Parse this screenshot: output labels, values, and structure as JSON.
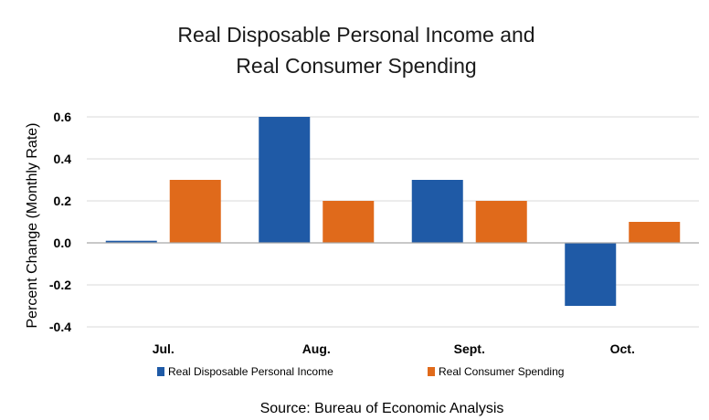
{
  "chart_data": {
    "type": "bar",
    "title": "Real Disposable Personal Income and Real Consumer Spending",
    "title_lines": [
      "Real Disposable Personal Income and",
      "Real Consumer Spending"
    ],
    "ylabel": "Percent Change (Monthly Rate)",
    "xlabel": "",
    "categories": [
      "Jul.",
      "Aug.",
      "Sept.",
      "Oct."
    ],
    "series": [
      {
        "name": "Real Disposable Personal Income",
        "values": [
          0.01,
          0.6,
          0.3,
          -0.3
        ],
        "color": "#1f5aa6"
      },
      {
        "name": "Real Consumer Spending",
        "values": [
          0.3,
          0.2,
          0.2,
          0.1
        ],
        "color": "#e06a1b"
      }
    ],
    "ylim": [
      -0.4,
      0.6
    ],
    "yticks": [
      -0.4,
      -0.2,
      0.0,
      0.2,
      0.4,
      0.6
    ],
    "ytick_labels": [
      "-0.4",
      "-0.2",
      "0.0",
      "0.2",
      "0.4",
      "0.6"
    ],
    "grid": true,
    "legend_position": "bottom",
    "source": "Source:  Bureau of Economic Analysis"
  }
}
